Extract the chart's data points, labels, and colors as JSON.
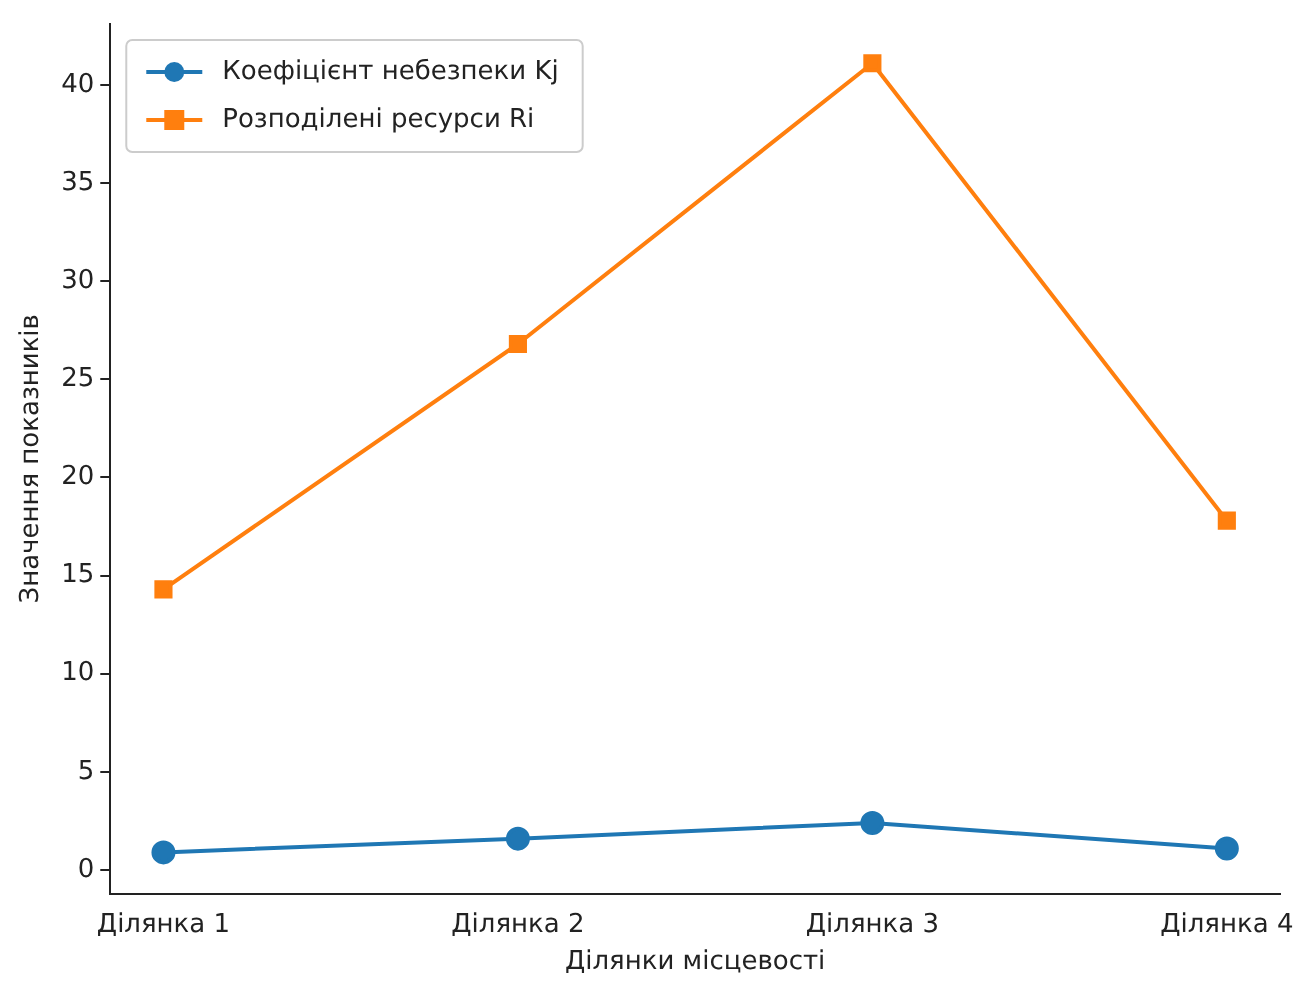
{
  "chart_data": {
    "type": "line",
    "xlabel": "Ділянки місцевості",
    "ylabel": "Значення показників",
    "categories": [
      "Ділянка 1",
      "Ділянка 2",
      "Ділянка 3",
      "Ділянка 4"
    ],
    "series": [
      {
        "name": "Коефіцієнт небезпеки Kj",
        "color": "#1f77b4",
        "marker": "circle",
        "values": [
          0.9,
          1.6,
          2.4,
          1.1
        ]
      },
      {
        "name": "Розподілені ресурси Ri",
        "color": "#ff7f0e",
        "marker": "square",
        "values": [
          14.3,
          26.8,
          41.1,
          17.8
        ]
      }
    ],
    "ylim": [
      -1.2,
      43.1
    ],
    "yticks": [
      0,
      5,
      10,
      15,
      20,
      25,
      30,
      35,
      40
    ],
    "legend": "top left",
    "grid": false,
    "line_style": "solid"
  }
}
